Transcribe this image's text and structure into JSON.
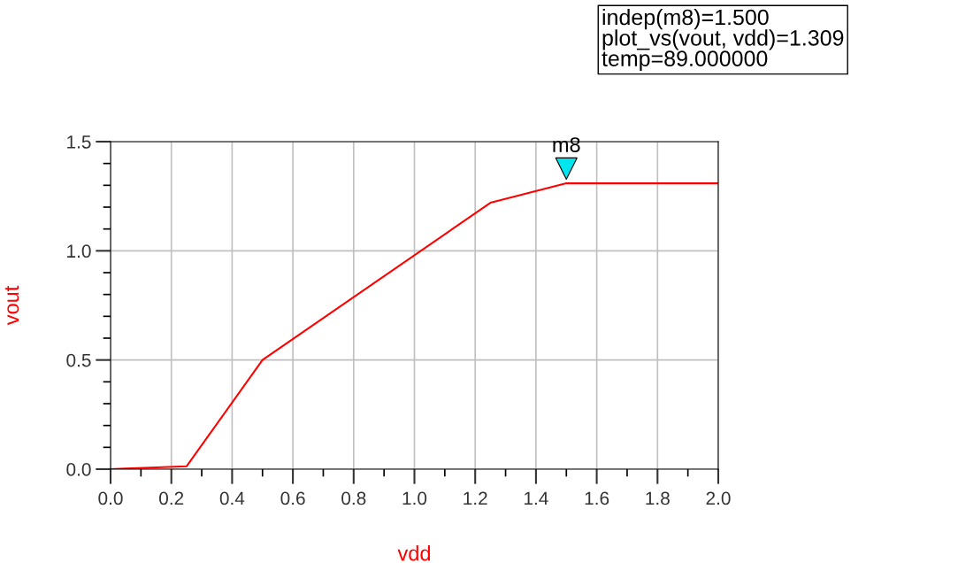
{
  "chart_data": {
    "type": "line",
    "xlabel": "vdd",
    "ylabel": "vout",
    "x": [
      0.0,
      0.05,
      0.15,
      0.25,
      0.5,
      1.25,
      1.5,
      2.0
    ],
    "series": [
      {
        "color": "#ff0000",
        "values": [
          0.0,
          0.003,
          0.008,
          0.013,
          0.5,
          1.22,
          1.309,
          1.309
        ]
      }
    ],
    "xlim": [
      0.0,
      2.0
    ],
    "xticks": [
      {
        "value": 0.0,
        "label": "0.0"
      },
      {
        "value": 0.2,
        "label": "0.2"
      },
      {
        "value": 0.4,
        "label": "0.4"
      },
      {
        "value": 0.6,
        "label": "0.6"
      },
      {
        "value": 0.8,
        "label": "0.8"
      },
      {
        "value": 1.0,
        "label": "1.0"
      },
      {
        "value": 1.2,
        "label": "1.2"
      },
      {
        "value": 1.4,
        "label": "1.4"
      },
      {
        "value": 1.6,
        "label": "1.6"
      },
      {
        "value": 1.8,
        "label": "1.8"
      },
      {
        "value": 2.0,
        "label": "2.0"
      }
    ],
    "ylim": [
      0.0,
      1.5
    ],
    "yticks": [
      {
        "value": 0.0,
        "label": "0.0"
      },
      {
        "value": 0.5,
        "label": "0.5"
      },
      {
        "value": 1.0,
        "label": "1.0"
      },
      {
        "value": 1.5,
        "label": "1.5"
      }
    ],
    "grid": true,
    "legend": false,
    "annotations": [
      {
        "text": "m8",
        "x": 1.5,
        "y": 1.309
      },
      "indep(m8)=1.500",
      "plot_vs(vout, vdd)=1.309",
      "temp=89.000000"
    ]
  }
}
